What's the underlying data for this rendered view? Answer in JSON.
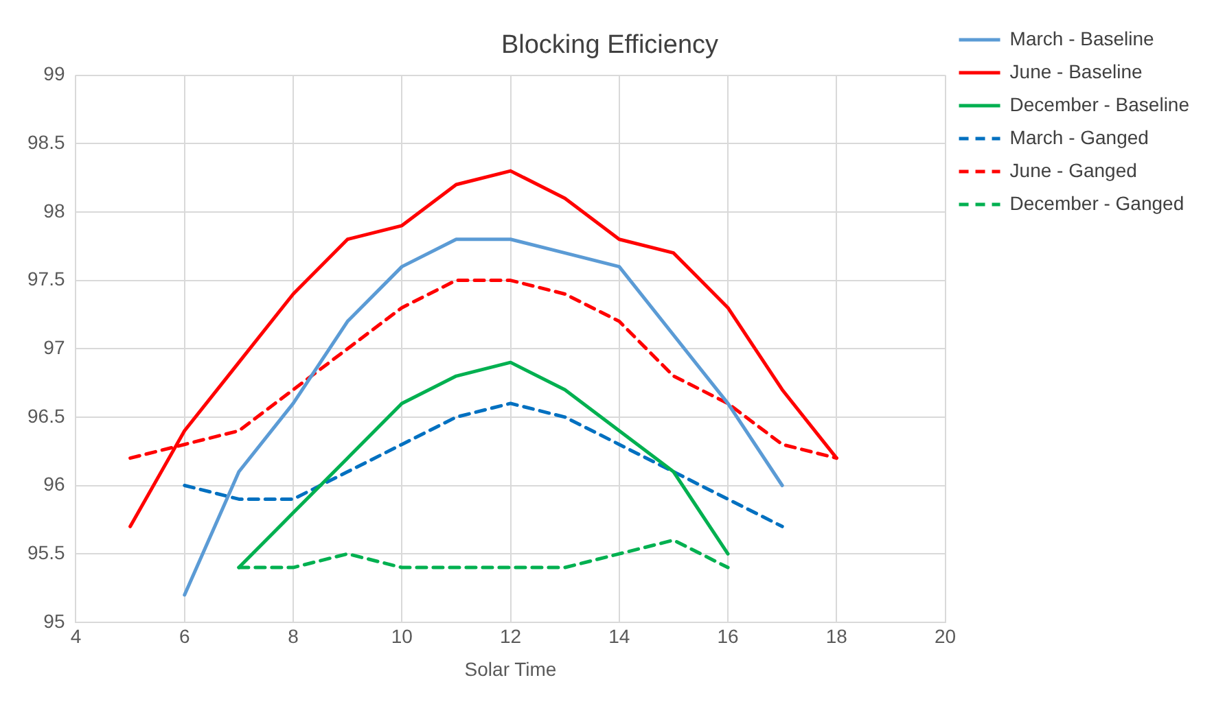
{
  "chart_data": {
    "type": "line",
    "title": "Blocking Efficiency",
    "xlabel": "Solar Time",
    "xlim": [
      4,
      20
    ],
    "xticks": [
      4,
      6,
      8,
      10,
      12,
      14,
      16,
      18,
      20
    ],
    "ylim": [
      95,
      99
    ],
    "yticks": [
      95,
      95.5,
      96,
      96.5,
      97,
      97.5,
      98,
      98.5,
      99
    ],
    "grid": true,
    "legend": "top right",
    "marker": "none",
    "series": [
      {
        "name": "March - Baseline",
        "color": "#5b9bd5",
        "line_style": "solid",
        "x": [
          6,
          7,
          8,
          9,
          10,
          11,
          12,
          13,
          14,
          15,
          16,
          17
        ],
        "values": [
          95.2,
          96.1,
          96.6,
          97.2,
          97.6,
          97.8,
          97.8,
          97.7,
          97.6,
          97.1,
          96.6,
          96.0
        ]
      },
      {
        "name": "June - Baseline",
        "color": "#ff0000",
        "line_style": "solid",
        "x": [
          5,
          6,
          7,
          8,
          9,
          10,
          11,
          12,
          13,
          14,
          15,
          16,
          17,
          18
        ],
        "values": [
          95.7,
          96.4,
          96.9,
          97.4,
          97.8,
          97.9,
          98.2,
          98.3,
          98.1,
          97.8,
          97.7,
          97.3,
          96.7,
          96.2
        ]
      },
      {
        "name": "December - Baseline",
        "color": "#00b050",
        "line_style": "solid",
        "x": [
          7,
          8,
          9,
          10,
          11,
          12,
          13,
          14,
          15,
          16
        ],
        "values": [
          95.4,
          95.8,
          96.2,
          96.6,
          96.8,
          96.9,
          96.7,
          96.4,
          96.1,
          95.5
        ]
      },
      {
        "name": "March - Ganged",
        "color": "#0070c0",
        "line_style": "dashed",
        "x": [
          6,
          7,
          8,
          9,
          10,
          11,
          12,
          13,
          14,
          15,
          16,
          17
        ],
        "values": [
          96.0,
          95.9,
          95.9,
          96.1,
          96.3,
          96.5,
          96.6,
          96.5,
          96.3,
          96.1,
          95.9,
          95.7
        ]
      },
      {
        "name": "June - Ganged",
        "color": "#ff0000",
        "line_style": "dashed",
        "x": [
          5,
          6,
          7,
          8,
          9,
          10,
          11,
          12,
          13,
          14,
          15,
          16,
          17,
          18
        ],
        "values": [
          96.2,
          96.3,
          96.4,
          96.7,
          97.0,
          97.3,
          97.5,
          97.5,
          97.4,
          97.2,
          96.8,
          96.6,
          96.3,
          96.2
        ]
      },
      {
        "name": "December - Ganged",
        "color": "#00b050",
        "line_style": "dashed",
        "x": [
          7,
          8,
          9,
          10,
          11,
          12,
          13,
          14,
          15,
          16
        ],
        "values": [
          95.4,
          95.4,
          95.5,
          95.4,
          95.4,
          95.4,
          95.4,
          95.5,
          95.6,
          95.4
        ]
      }
    ]
  }
}
